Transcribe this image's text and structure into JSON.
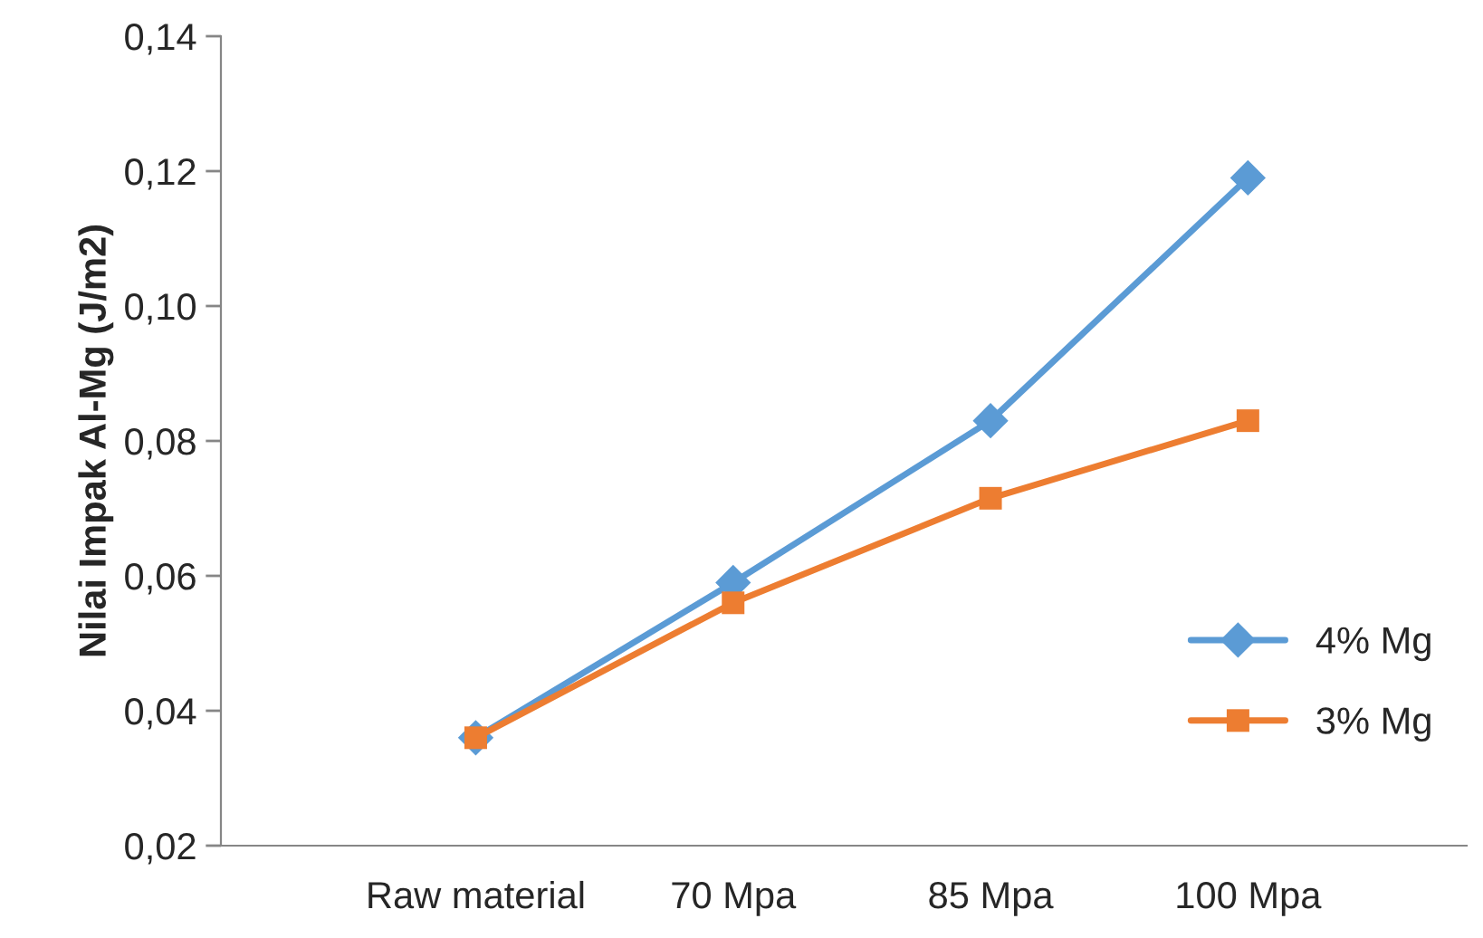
{
  "chart_data": {
    "type": "line",
    "ylabel": "Nilai Impak Al-Mg (J/m2)",
    "categories": [
      "Raw material",
      "70 Mpa",
      "85 Mpa",
      "100 Mpa"
    ],
    "series": [
      {
        "name": "4% Mg",
        "color": "#5b9bd5",
        "marker": "diamond",
        "values": [
          0.036,
          0.059,
          0.083,
          0.119
        ]
      },
      {
        "name": "3% Mg",
        "color": "#ed7d31",
        "marker": "square",
        "values": [
          0.036,
          0.056,
          0.0715,
          0.083
        ]
      }
    ],
    "ylim": [
      0.02,
      0.14
    ],
    "yticks": [
      {
        "value": 0.02,
        "label": "0,02"
      },
      {
        "value": 0.04,
        "label": "0,04"
      },
      {
        "value": 0.06,
        "label": "0,06"
      },
      {
        "value": 0.08,
        "label": "0,08"
      },
      {
        "value": 0.1,
        "label": "0,10"
      },
      {
        "value": 0.12,
        "label": "0,12"
      },
      {
        "value": 0.14,
        "label": "0,14"
      }
    ],
    "grid": false,
    "legend": "right",
    "line_style": "solid"
  }
}
